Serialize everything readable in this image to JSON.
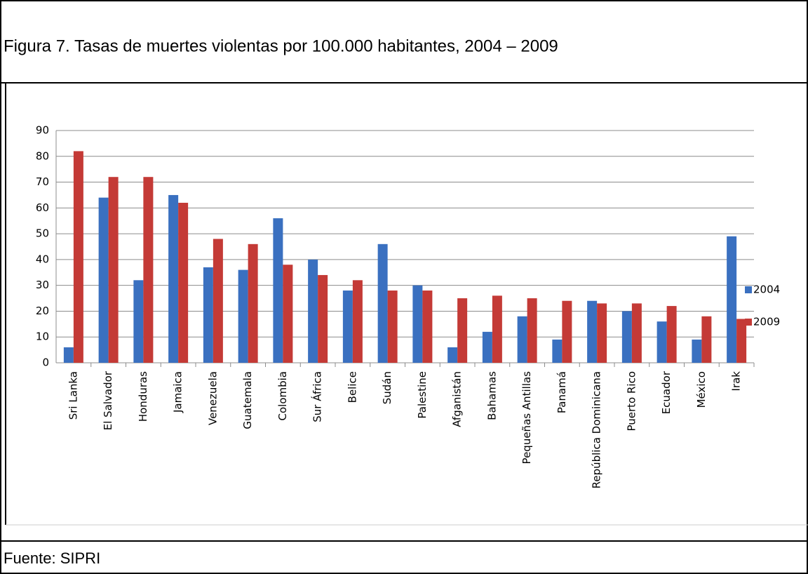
{
  "chart_data": {
    "type": "bar",
    "title": "Figura 7. Tasas de muertes violentas por 100.000 habitantes, 2004 – 2009",
    "source": "Fuente: SIPRI",
    "categories": [
      "Sri Lanka",
      "El Salvador",
      "Honduras",
      "Jamaica",
      "Venezuela",
      "Guatemala",
      "Colombia",
      "Sur África",
      "Belice",
      "Sudán",
      "Palestine",
      "Afganistán",
      "Bahamas",
      "Pequeñas Antillas",
      "Panamá",
      "República Dominicana",
      "Puerto Rico",
      "Ecuador",
      "México",
      "Irak"
    ],
    "series": [
      {
        "name": "2004",
        "color": "#3a70c0",
        "values": [
          6,
          64,
          32,
          65,
          37,
          36,
          56,
          40,
          28,
          46,
          30,
          6,
          12,
          18,
          9,
          24,
          20,
          16,
          9,
          49
        ]
      },
      {
        "name": "2009",
        "color": "#c43a36",
        "values": [
          82,
          72,
          72,
          62,
          48,
          46,
          38,
          34,
          32,
          28,
          28,
          25,
          26,
          25,
          24,
          23,
          23,
          22,
          18,
          17
        ]
      }
    ],
    "ylim": [
      0,
      90
    ],
    "yticks": [
      0,
      10,
      20,
      30,
      40,
      50,
      60,
      70,
      80,
      90
    ],
    "grid": true,
    "legend": "right"
  }
}
